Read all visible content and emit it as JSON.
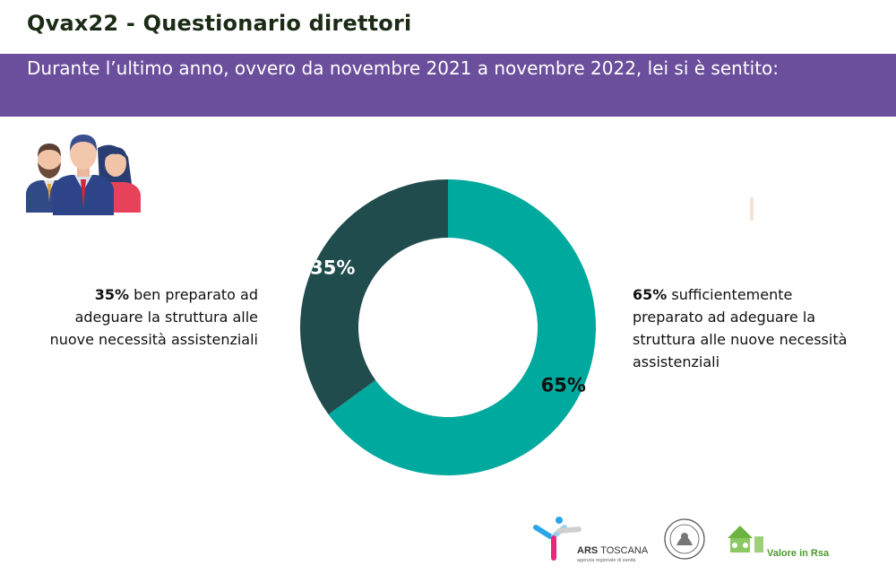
{
  "header": {
    "title": "Qvax22 - Questionario direttori",
    "question": "Durante l’ultimo anno, ovvero da novembre 2021 a novembre 2022, lei si è sentito:"
  },
  "colors": {
    "banner": "#6b4f9c",
    "slice_sufficient": "#00a99d",
    "slice_well": "#214c4d"
  },
  "icons": [
    "people-group-icon",
    "ars-toscana-logo",
    "university-seal-logo",
    "valore-in-rsa-logo"
  ],
  "chart_data": {
    "type": "pie",
    "donut": true,
    "slices": [
      {
        "label": "sufficientemente preparato ad adeguare la struttura alle nuove necessità assistenziali",
        "value": 65,
        "value_label": "65%",
        "color": "#00a99d"
      },
      {
        "label": "ben preparato ad adeguare la struttura alle nuove necessità assistenziali",
        "value": 35,
        "value_label": "35%",
        "color": "#214c4d"
      }
    ]
  },
  "annotations": {
    "left": {
      "pct": "35%",
      "text": " ben preparato ad adeguare la struttura alle nuove necessità assistenziali"
    },
    "right": {
      "pct": "65%",
      "text": " sufficientemente preparato ad adeguare la struttura alle nuove necessità assistenziali"
    }
  },
  "logos": {
    "ars_name_bold": "ARS",
    "ars_name": "TOSCANA",
    "ars_subtitle": "agenzia regionale di sanità",
    "rsa_name": "Valore in Rsa"
  }
}
